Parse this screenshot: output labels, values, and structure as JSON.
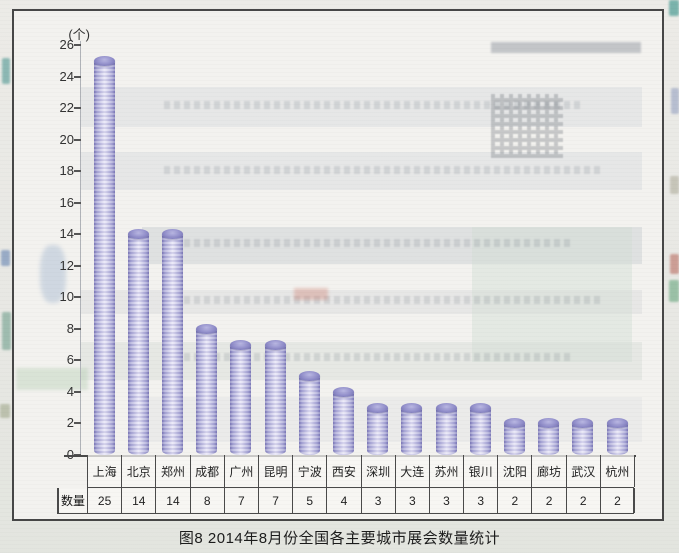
{
  "chart_data": {
    "type": "bar",
    "title": "图8 2014年8月份全国各主要城市展会数量统计",
    "unit_label": "(个)",
    "categories": [
      "上海",
      "北京",
      "郑州",
      "成都",
      "广州",
      "昆明",
      "宁波",
      "西安",
      "深圳",
      "大连",
      "苏州",
      "银川",
      "沈阳",
      "廊坊",
      "武汉",
      "杭州"
    ],
    "values": [
      25,
      14,
      14,
      8,
      7,
      7,
      5,
      4,
      3,
      3,
      3,
      3,
      2,
      2,
      2,
      2
    ],
    "table_row_label": "数量",
    "xlabel": "",
    "ylabel": "(个)",
    "ylim": [
      0,
      26
    ],
    "ytick_step": 2,
    "grid": false,
    "legend_position": "none",
    "bar_style": "3d-cylinder",
    "bar_color_edge": "#7b78b6",
    "bar_color_mid": "#a9a7d6",
    "bar_color_center": "#dddbf2",
    "cap_color": "#8f8cc9",
    "axis_color": "#4a4a4a",
    "panel_border_color": "#474747"
  }
}
